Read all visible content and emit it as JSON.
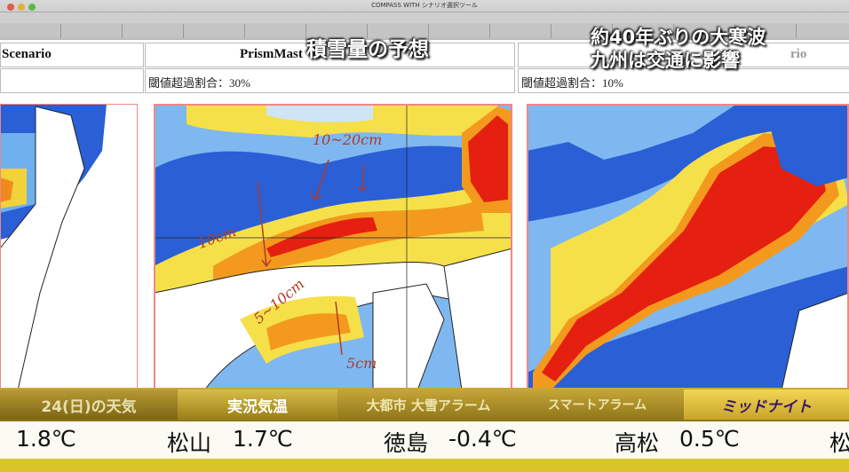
{
  "window": {
    "title": "COMPASS WITH シナリオ選択ツール"
  },
  "overlay": {
    "title": "積雪量の予想",
    "headline": [
      "約40年ぶりの大寒波",
      "九州は交通に影響"
    ]
  },
  "table": {
    "headers": [
      "Scenario",
      "PrismMast",
      "rio"
    ],
    "notes": [
      "閾値超過割合：30%",
      "閾値超過割合：10%"
    ]
  },
  "annotations": [
    "10~20cm",
    "10cm",
    "5~10cm",
    "5cm"
  ],
  "ticker": {
    "tabs": [
      "24(日)の天気",
      "実況気温",
      "大都市 大雪アラーム",
      "スマートアラーム",
      "ミッドナイト"
    ],
    "temps": [
      {
        "value": "1.8℃"
      },
      {
        "city": "松山",
        "value": "1.7℃"
      },
      {
        "city": "徳島",
        "value": "-0.4℃"
      },
      {
        "city": "高松",
        "value": "0.5℃"
      },
      {
        "city": "松"
      }
    ]
  }
}
